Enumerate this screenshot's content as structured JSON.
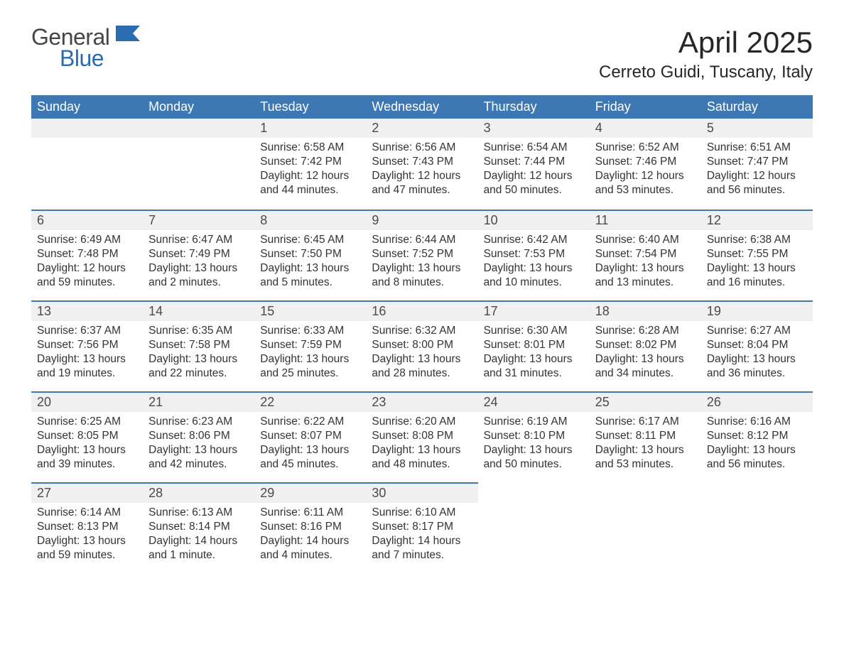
{
  "brand": {
    "word1": "General",
    "word2": "Blue",
    "word1_color": "#464646",
    "word2_color": "#2b6cb0"
  },
  "title": "April 2025",
  "location": "Cerreto Guidi, Tuscany, Italy",
  "colors": {
    "header_bg": "#3d78b4",
    "header_text": "#ffffff",
    "daybar_bg": "#f0f0f0",
    "daybar_border": "#3d78b4",
    "body_text": "#333333",
    "page_bg": "#ffffff"
  },
  "layout": {
    "first_day_column": 2,
    "num_days": 30,
    "columns": 7,
    "rows": 5
  },
  "weekdays": [
    "Sunday",
    "Monday",
    "Tuesday",
    "Wednesday",
    "Thursday",
    "Friday",
    "Saturday"
  ],
  "days": [
    {
      "n": 1,
      "sunrise": "6:58 AM",
      "sunset": "7:42 PM",
      "daylight": "12 hours and 44 minutes."
    },
    {
      "n": 2,
      "sunrise": "6:56 AM",
      "sunset": "7:43 PM",
      "daylight": "12 hours and 47 minutes."
    },
    {
      "n": 3,
      "sunrise": "6:54 AM",
      "sunset": "7:44 PM",
      "daylight": "12 hours and 50 minutes."
    },
    {
      "n": 4,
      "sunrise": "6:52 AM",
      "sunset": "7:46 PM",
      "daylight": "12 hours and 53 minutes."
    },
    {
      "n": 5,
      "sunrise": "6:51 AM",
      "sunset": "7:47 PM",
      "daylight": "12 hours and 56 minutes."
    },
    {
      "n": 6,
      "sunrise": "6:49 AM",
      "sunset": "7:48 PM",
      "daylight": "12 hours and 59 minutes."
    },
    {
      "n": 7,
      "sunrise": "6:47 AM",
      "sunset": "7:49 PM",
      "daylight": "13 hours and 2 minutes."
    },
    {
      "n": 8,
      "sunrise": "6:45 AM",
      "sunset": "7:50 PM",
      "daylight": "13 hours and 5 minutes."
    },
    {
      "n": 9,
      "sunrise": "6:44 AM",
      "sunset": "7:52 PM",
      "daylight": "13 hours and 8 minutes."
    },
    {
      "n": 10,
      "sunrise": "6:42 AM",
      "sunset": "7:53 PM",
      "daylight": "13 hours and 10 minutes."
    },
    {
      "n": 11,
      "sunrise": "6:40 AM",
      "sunset": "7:54 PM",
      "daylight": "13 hours and 13 minutes."
    },
    {
      "n": 12,
      "sunrise": "6:38 AM",
      "sunset": "7:55 PM",
      "daylight": "13 hours and 16 minutes."
    },
    {
      "n": 13,
      "sunrise": "6:37 AM",
      "sunset": "7:56 PM",
      "daylight": "13 hours and 19 minutes."
    },
    {
      "n": 14,
      "sunrise": "6:35 AM",
      "sunset": "7:58 PM",
      "daylight": "13 hours and 22 minutes."
    },
    {
      "n": 15,
      "sunrise": "6:33 AM",
      "sunset": "7:59 PM",
      "daylight": "13 hours and 25 minutes."
    },
    {
      "n": 16,
      "sunrise": "6:32 AM",
      "sunset": "8:00 PM",
      "daylight": "13 hours and 28 minutes."
    },
    {
      "n": 17,
      "sunrise": "6:30 AM",
      "sunset": "8:01 PM",
      "daylight": "13 hours and 31 minutes."
    },
    {
      "n": 18,
      "sunrise": "6:28 AM",
      "sunset": "8:02 PM",
      "daylight": "13 hours and 34 minutes."
    },
    {
      "n": 19,
      "sunrise": "6:27 AM",
      "sunset": "8:04 PM",
      "daylight": "13 hours and 36 minutes."
    },
    {
      "n": 20,
      "sunrise": "6:25 AM",
      "sunset": "8:05 PM",
      "daylight": "13 hours and 39 minutes."
    },
    {
      "n": 21,
      "sunrise": "6:23 AM",
      "sunset": "8:06 PM",
      "daylight": "13 hours and 42 minutes."
    },
    {
      "n": 22,
      "sunrise": "6:22 AM",
      "sunset": "8:07 PM",
      "daylight": "13 hours and 45 minutes."
    },
    {
      "n": 23,
      "sunrise": "6:20 AM",
      "sunset": "8:08 PM",
      "daylight": "13 hours and 48 minutes."
    },
    {
      "n": 24,
      "sunrise": "6:19 AM",
      "sunset": "8:10 PM",
      "daylight": "13 hours and 50 minutes."
    },
    {
      "n": 25,
      "sunrise": "6:17 AM",
      "sunset": "8:11 PM",
      "daylight": "13 hours and 53 minutes."
    },
    {
      "n": 26,
      "sunrise": "6:16 AM",
      "sunset": "8:12 PM",
      "daylight": "13 hours and 56 minutes."
    },
    {
      "n": 27,
      "sunrise": "6:14 AM",
      "sunset": "8:13 PM",
      "daylight": "13 hours and 59 minutes."
    },
    {
      "n": 28,
      "sunrise": "6:13 AM",
      "sunset": "8:14 PM",
      "daylight": "14 hours and 1 minute."
    },
    {
      "n": 29,
      "sunrise": "6:11 AM",
      "sunset": "8:16 PM",
      "daylight": "14 hours and 4 minutes."
    },
    {
      "n": 30,
      "sunrise": "6:10 AM",
      "sunset": "8:17 PM",
      "daylight": "14 hours and 7 minutes."
    }
  ],
  "labels": {
    "sunrise": "Sunrise:",
    "sunset": "Sunset:",
    "daylight": "Daylight:"
  }
}
